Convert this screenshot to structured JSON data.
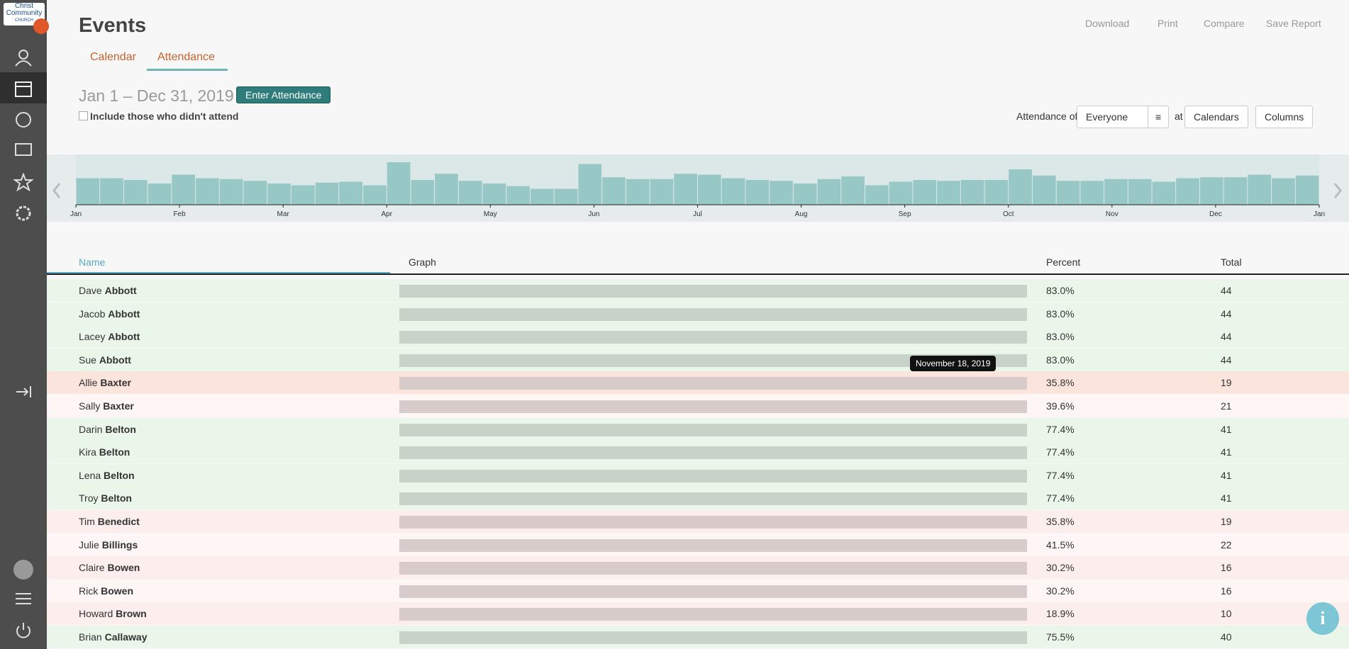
{
  "logo": [
    "Christ",
    "Community",
    "CHURCH"
  ],
  "header": {
    "title": "Events",
    "tabs": [
      "Calendar",
      "Attendance"
    ]
  },
  "toolbar": [
    "Download",
    "Print",
    "Compare",
    "Save Report"
  ],
  "range": {
    "dates": "Jan 1 – Dec 31, 2019",
    "button": "Enter Attendance",
    "checkbox": "Include those who didn't attend"
  },
  "filters": {
    "prefix": "Attendance of",
    "who": "Everyone",
    "at": "at",
    "calendars": "Calendars",
    "columns": "Columns"
  },
  "histogram": {
    "months": [
      "Jan",
      "Feb",
      "Mar",
      "Apr",
      "May",
      "Jun",
      "Jul",
      "Aug",
      "Sep",
      "Oct",
      "Nov",
      "Dec",
      "Jan"
    ],
    "values": [
      30,
      30,
      28,
      24,
      34,
      30,
      29,
      27,
      24,
      22,
      25,
      26,
      22,
      48,
      28,
      35,
      27,
      24,
      21,
      18,
      18,
      46,
      31,
      29,
      29,
      35,
      34,
      30,
      28,
      27,
      24,
      29,
      32,
      22,
      26,
      28,
      27,
      28,
      28,
      40,
      33,
      27,
      27,
      29,
      29,
      26,
      30,
      31,
      31,
      34,
      30,
      33
    ]
  },
  "table": {
    "headers": [
      "Name",
      "Graph",
      "Percent",
      "Total"
    ],
    "rows": [
      {
        "first": "Dave",
        "last": "Abbott",
        "percent": "83.0%",
        "total": 44
      },
      {
        "first": "Jacob",
        "last": "Abbott",
        "percent": "83.0%",
        "total": 44
      },
      {
        "first": "Lacey",
        "last": "Abbott",
        "percent": "83.0%",
        "total": 44
      },
      {
        "first": "Sue",
        "last": "Abbott",
        "percent": "83.0%",
        "total": 44
      },
      {
        "first": "Allie",
        "last": "Baxter",
        "percent": "35.8%",
        "total": 19
      },
      {
        "first": "Sally",
        "last": "Baxter",
        "percent": "39.6%",
        "total": 21
      },
      {
        "first": "Darin",
        "last": "Belton",
        "percent": "77.4%",
        "total": 41
      },
      {
        "first": "Kira",
        "last": "Belton",
        "percent": "77.4%",
        "total": 41
      },
      {
        "first": "Lena",
        "last": "Belton",
        "percent": "77.4%",
        "total": 41
      },
      {
        "first": "Troy",
        "last": "Belton",
        "percent": "77.4%",
        "total": 41
      },
      {
        "first": "Tim",
        "last": "Benedict",
        "percent": "35.8%",
        "total": 19
      },
      {
        "first": "Julie",
        "last": "Billings",
        "percent": "41.5%",
        "total": 22
      },
      {
        "first": "Claire",
        "last": "Bowen",
        "percent": "30.2%",
        "total": 16
      },
      {
        "first": "Rick",
        "last": "Bowen",
        "percent": "30.2%",
        "total": 16
      },
      {
        "first": "Howard",
        "last": "Brown",
        "percent": "18.9%",
        "total": 10
      },
      {
        "first": "Brian",
        "last": "Callaway",
        "percent": "75.5%",
        "total": 40
      }
    ]
  },
  "tooltip": "November 18, 2019"
}
